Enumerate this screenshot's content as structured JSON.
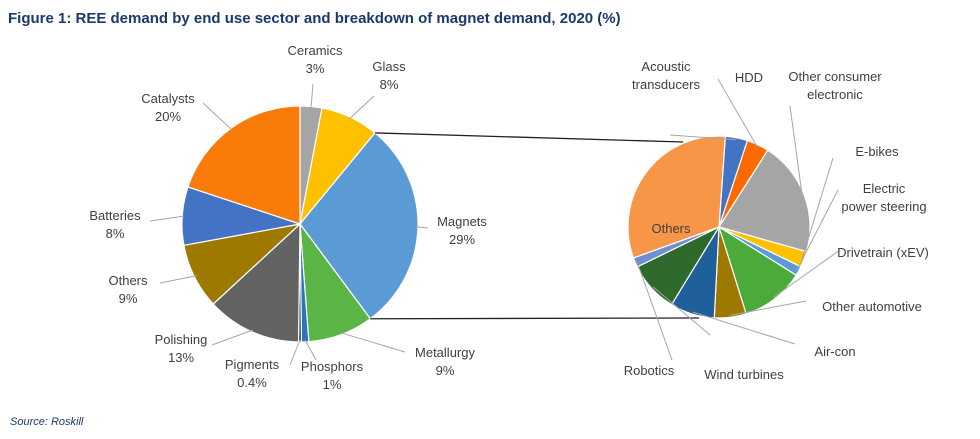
{
  "figure": {
    "title": "Figure 1: REE demand by end use sector and breakdown of magnet demand, 2020 (%)",
    "source": "Source: Roskill"
  },
  "chart_data": [
    {
      "type": "pie",
      "title": "",
      "slices": [
        {
          "name": "Ceramics",
          "value": 3,
          "value_label": "3%",
          "color": "#a5a5a5"
        },
        {
          "name": "Glass",
          "value": 8,
          "value_label": "8%",
          "color": "#ffc000"
        },
        {
          "name": "Magnets",
          "value": 29,
          "value_label": "29%",
          "color": "#5b9bd5"
        },
        {
          "name": "Metallurgy",
          "value": 9,
          "value_label": "9%",
          "color": "#5bb446"
        },
        {
          "name": "Phosphors",
          "value": 1,
          "value_label": "1%",
          "color": "#2e75b6"
        },
        {
          "name": "Pigments",
          "value": 0.4,
          "value_label": "0.4%",
          "color": "#1f3864"
        },
        {
          "name": "Polishing",
          "value": 13,
          "value_label": "13%",
          "color": "#636363"
        },
        {
          "name": "Others",
          "value": 9,
          "value_label": "9%",
          "color": "#9e7900"
        },
        {
          "name": "Batteries",
          "value": 8,
          "value_label": "8%",
          "color": "#4472c4"
        },
        {
          "name": "Catalysts",
          "value": 20,
          "value_label": "20%",
          "color": "#fb7b09"
        }
      ]
    },
    {
      "type": "pie",
      "title": "",
      "slices": [
        {
          "name": "Acoustic transducers",
          "value": 3.5,
          "value_label": "",
          "color": "#4472c4"
        },
        {
          "name": "HDD",
          "value": 3.5,
          "value_label": "",
          "color": "#ff6a00"
        },
        {
          "name": "Other consumer electronic",
          "value": 18,
          "value_label": "",
          "color": "#a5a5a5"
        },
        {
          "name": "E-bikes",
          "value": 2.5,
          "value_label": "",
          "color": "#ffc000"
        },
        {
          "name": "Electric power steering",
          "value": 1.5,
          "value_label": "",
          "color": "#5b9bd5"
        },
        {
          "name": "Drivetrain (xEV)",
          "value": 10,
          "value_label": "",
          "color": "#4aab3a"
        },
        {
          "name": "Other automotive",
          "value": 5,
          "value_label": "",
          "color": "#9e7900"
        },
        {
          "name": "Air-con",
          "value": 7,
          "value_label": "",
          "color": "#1f5f9a"
        },
        {
          "name": "Wind turbines",
          "value": 8,
          "value_label": "",
          "color": "#2e6a2b"
        },
        {
          "name": "Robotics",
          "value": 1.5,
          "value_label": "",
          "color": "#6f8fd0"
        },
        {
          "name": "Others",
          "value": 28,
          "value_label": "Others",
          "color": "#f79646"
        }
      ]
    }
  ]
}
